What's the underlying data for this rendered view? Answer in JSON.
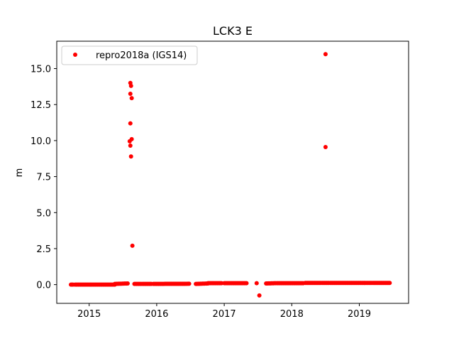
{
  "chart_data": {
    "type": "scatter",
    "title": "LCK3 E",
    "xlabel": "",
    "ylabel": "m",
    "xlim": [
      2014.52,
      2019.73
    ],
    "ylim": [
      -1.3,
      16.9
    ],
    "x_ticks": [
      2015,
      2016,
      2017,
      2018,
      2019
    ],
    "x_tick_labels": [
      "2015",
      "2016",
      "2017",
      "2018",
      "2019"
    ],
    "y_ticks": [
      0.0,
      2.5,
      5.0,
      7.5,
      10.0,
      12.5,
      15.0
    ],
    "y_tick_labels": [
      "0.0",
      "2.5",
      "5.0",
      "7.5",
      "10.0",
      "12.5",
      "15.0"
    ],
    "grid": false,
    "legend_position": "top-left",
    "series": [
      {
        "name": "repro2018a (IGS14)",
        "color": "#ff0000",
        "marker": "circle",
        "continuous_segments": [
          {
            "x_start": 2014.73,
            "x_end": 2014.76,
            "y_start": 0.0,
            "y_end": 0.0
          },
          {
            "x_start": 2014.79,
            "x_end": 2015.38,
            "y_start": 0.0,
            "y_end": 0.0
          },
          {
            "x_start": 2015.38,
            "x_end": 2015.57,
            "y_start": 0.05,
            "y_end": 0.08
          },
          {
            "x_start": 2015.67,
            "x_end": 2015.77,
            "y_start": 0.05,
            "y_end": 0.05
          },
          {
            "x_start": 2015.79,
            "x_end": 2015.92,
            "y_start": 0.05,
            "y_end": 0.05
          },
          {
            "x_start": 2015.95,
            "x_end": 2016.48,
            "y_start": 0.05,
            "y_end": 0.06
          },
          {
            "x_start": 2016.58,
            "x_end": 2016.76,
            "y_start": 0.05,
            "y_end": 0.08
          },
          {
            "x_start": 2016.76,
            "x_end": 2016.96,
            "y_start": 0.1,
            "y_end": 0.1
          },
          {
            "x_start": 2017.0,
            "x_end": 2017.33,
            "y_start": 0.1,
            "y_end": 0.1
          },
          {
            "x_start": 2017.62,
            "x_end": 2017.76,
            "y_start": 0.08,
            "y_end": 0.1
          },
          {
            "x_start": 2017.78,
            "x_end": 2018.17,
            "y_start": 0.1,
            "y_end": 0.1
          },
          {
            "x_start": 2018.2,
            "x_end": 2018.43,
            "y_start": 0.12,
            "y_end": 0.12
          },
          {
            "x_start": 2018.45,
            "x_end": 2018.55,
            "y_start": 0.12,
            "y_end": 0.12
          },
          {
            "x_start": 2018.57,
            "x_end": 2019.07,
            "y_start": 0.12,
            "y_end": 0.12
          },
          {
            "x_start": 2019.08,
            "x_end": 2019.18,
            "y_start": 0.12,
            "y_end": 0.12
          },
          {
            "x_start": 2019.2,
            "x_end": 2019.45,
            "y_start": 0.12,
            "y_end": 0.12
          }
        ],
        "outliers": [
          {
            "x": 2015.61,
            "y": 14.0
          },
          {
            "x": 2015.62,
            "y": 13.8
          },
          {
            "x": 2015.61,
            "y": 13.25
          },
          {
            "x": 2015.63,
            "y": 12.95
          },
          {
            "x": 2015.61,
            "y": 11.2
          },
          {
            "x": 2015.63,
            "y": 10.1
          },
          {
            "x": 2015.6,
            "y": 9.95
          },
          {
            "x": 2015.61,
            "y": 9.65
          },
          {
            "x": 2015.62,
            "y": 8.9
          },
          {
            "x": 2015.64,
            "y": 2.7
          },
          {
            "x": 2017.48,
            "y": 0.1
          },
          {
            "x": 2017.52,
            "y": -0.75
          },
          {
            "x": 2018.5,
            "y": 16.0
          },
          {
            "x": 2018.5,
            "y": 9.55
          }
        ]
      }
    ]
  }
}
